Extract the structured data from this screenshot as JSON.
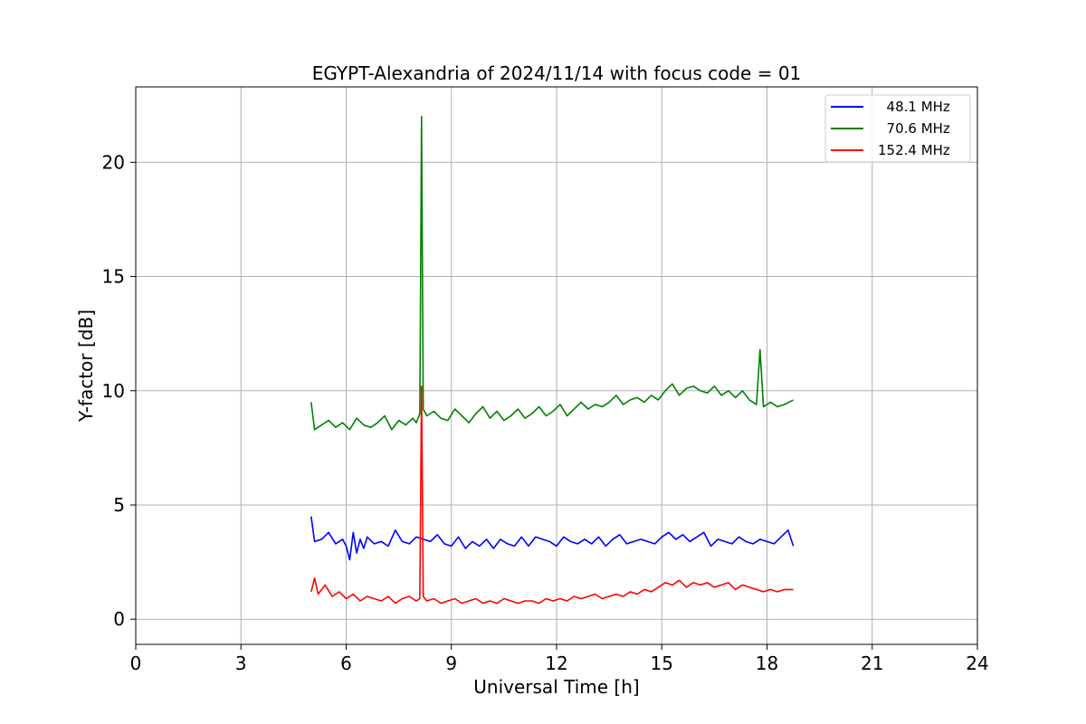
{
  "chart_data": {
    "type": "line",
    "title": "EGYPT-Alexandria of 2024/11/14 with focus code = 01",
    "xlabel": "Universal Time [h]",
    "ylabel": "Y-factor [dB]",
    "xlim": [
      0,
      24
    ],
    "ylim": [
      -1.1,
      23.3
    ],
    "xticks": [
      0,
      3,
      6,
      9,
      12,
      15,
      18,
      21,
      24
    ],
    "yticks": [
      0,
      5,
      10,
      15,
      20
    ],
    "grid": true,
    "legend_position": "top-right",
    "series": [
      {
        "name": "  48.1 MHz",
        "color": "#0000ff",
        "x": [
          5.0,
          5.1,
          5.3,
          5.5,
          5.7,
          5.9,
          6.0,
          6.1,
          6.2,
          6.3,
          6.4,
          6.5,
          6.6,
          6.8,
          7.0,
          7.2,
          7.4,
          7.6,
          7.8,
          8.0,
          8.2,
          8.4,
          8.6,
          8.8,
          9.0,
          9.2,
          9.4,
          9.6,
          9.8,
          10.0,
          10.2,
          10.4,
          10.6,
          10.8,
          11.0,
          11.2,
          11.4,
          11.6,
          11.8,
          12.0,
          12.2,
          12.4,
          12.6,
          12.8,
          13.0,
          13.2,
          13.4,
          13.6,
          13.8,
          14.0,
          14.2,
          14.4,
          14.6,
          14.8,
          15.0,
          15.2,
          15.4,
          15.6,
          15.8,
          16.0,
          16.2,
          16.4,
          16.6,
          16.8,
          17.0,
          17.2,
          17.4,
          17.6,
          17.8,
          18.0,
          18.2,
          18.4,
          18.6,
          18.75
        ],
        "y": [
          4.5,
          3.4,
          3.5,
          3.8,
          3.3,
          3.5,
          3.2,
          2.6,
          3.8,
          2.9,
          3.5,
          3.1,
          3.6,
          3.3,
          3.4,
          3.2,
          3.9,
          3.4,
          3.3,
          3.6,
          3.5,
          3.4,
          3.7,
          3.3,
          3.2,
          3.6,
          3.1,
          3.4,
          3.2,
          3.5,
          3.1,
          3.5,
          3.3,
          3.2,
          3.6,
          3.2,
          3.6,
          3.5,
          3.4,
          3.2,
          3.6,
          3.4,
          3.3,
          3.5,
          3.3,
          3.6,
          3.2,
          3.5,
          3.7,
          3.3,
          3.4,
          3.5,
          3.4,
          3.3,
          3.6,
          3.8,
          3.5,
          3.7,
          3.4,
          3.6,
          3.8,
          3.2,
          3.5,
          3.4,
          3.3,
          3.6,
          3.4,
          3.3,
          3.5,
          3.4,
          3.3,
          3.6,
          3.9,
          3.2
        ]
      },
      {
        "name": "  70.6 MHz",
        "color": "#008000",
        "x": [
          5.0,
          5.1,
          5.3,
          5.5,
          5.7,
          5.9,
          6.1,
          6.3,
          6.5,
          6.7,
          6.9,
          7.1,
          7.3,
          7.5,
          7.7,
          7.9,
          8.0,
          8.1,
          8.15,
          8.2,
          8.3,
          8.5,
          8.7,
          8.9,
          9.1,
          9.3,
          9.5,
          9.7,
          9.9,
          10.1,
          10.3,
          10.5,
          10.7,
          10.9,
          11.1,
          11.3,
          11.5,
          11.7,
          11.9,
          12.1,
          12.3,
          12.5,
          12.7,
          12.9,
          13.1,
          13.3,
          13.5,
          13.7,
          13.9,
          14.1,
          14.3,
          14.5,
          14.7,
          14.9,
          15.1,
          15.3,
          15.5,
          15.7,
          15.9,
          16.1,
          16.3,
          16.5,
          16.7,
          16.9,
          17.1,
          17.3,
          17.5,
          17.7,
          17.8,
          17.9,
          18.1,
          18.3,
          18.5,
          18.75
        ],
        "y": [
          9.5,
          8.3,
          8.5,
          8.7,
          8.4,
          8.6,
          8.3,
          8.8,
          8.5,
          8.4,
          8.6,
          8.9,
          8.3,
          8.7,
          8.5,
          8.8,
          8.6,
          9.0,
          22.0,
          9.2,
          8.9,
          9.1,
          8.8,
          8.7,
          9.2,
          8.9,
          8.6,
          9.0,
          9.3,
          8.8,
          9.1,
          8.7,
          8.9,
          9.2,
          8.8,
          9.0,
          9.3,
          8.9,
          9.1,
          9.4,
          8.9,
          9.2,
          9.5,
          9.2,
          9.4,
          9.3,
          9.5,
          9.8,
          9.4,
          9.6,
          9.7,
          9.5,
          9.8,
          9.6,
          10.0,
          10.3,
          9.8,
          10.1,
          10.2,
          10.0,
          9.9,
          10.2,
          9.8,
          10.0,
          9.7,
          10.0,
          9.6,
          9.4,
          11.8,
          9.3,
          9.5,
          9.3,
          9.4,
          9.6
        ]
      },
      {
        "name": "152.4 MHz",
        "color": "#ff0000",
        "x": [
          5.0,
          5.1,
          5.2,
          5.4,
          5.6,
          5.8,
          6.0,
          6.2,
          6.4,
          6.6,
          6.8,
          7.0,
          7.2,
          7.4,
          7.6,
          7.8,
          8.0,
          8.1,
          8.15,
          8.2,
          8.3,
          8.5,
          8.7,
          8.9,
          9.1,
          9.3,
          9.5,
          9.7,
          9.9,
          10.1,
          10.3,
          10.5,
          10.7,
          10.9,
          11.1,
          11.3,
          11.5,
          11.7,
          11.9,
          12.1,
          12.3,
          12.5,
          12.7,
          12.9,
          13.1,
          13.3,
          13.5,
          13.7,
          13.9,
          14.1,
          14.3,
          14.5,
          14.7,
          14.9,
          15.1,
          15.3,
          15.5,
          15.7,
          15.9,
          16.1,
          16.3,
          16.5,
          16.7,
          16.9,
          17.1,
          17.3,
          17.5,
          17.7,
          17.9,
          18.1,
          18.3,
          18.5,
          18.75
        ],
        "y": [
          1.2,
          1.8,
          1.1,
          1.5,
          1.0,
          1.2,
          0.9,
          1.1,
          0.8,
          1.0,
          0.9,
          0.8,
          1.0,
          0.7,
          0.9,
          1.0,
          0.8,
          0.9,
          10.2,
          1.0,
          0.8,
          0.9,
          0.7,
          0.8,
          0.9,
          0.7,
          0.8,
          0.9,
          0.7,
          0.8,
          0.7,
          0.9,
          0.8,
          0.7,
          0.8,
          0.8,
          0.7,
          0.9,
          0.8,
          0.9,
          0.8,
          1.0,
          0.9,
          1.0,
          1.1,
          0.9,
          1.0,
          1.1,
          1.0,
          1.2,
          1.1,
          1.3,
          1.2,
          1.4,
          1.6,
          1.5,
          1.7,
          1.4,
          1.6,
          1.5,
          1.6,
          1.4,
          1.5,
          1.6,
          1.3,
          1.5,
          1.4,
          1.3,
          1.2,
          1.3,
          1.2,
          1.3,
          1.3
        ]
      }
    ]
  }
}
